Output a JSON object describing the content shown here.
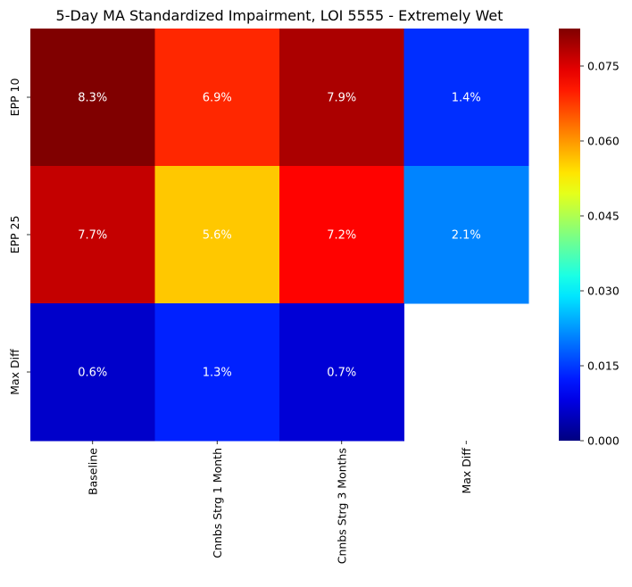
{
  "chart_data": {
    "type": "heatmap",
    "title": "5-Day MA Standardized Impairment, LOI 5555 - Extremely Wet",
    "xlabel": "",
    "ylabel": "",
    "x_categories": [
      "Baseline",
      "Cnnbs Strg 1 Month",
      "Cnnbs Strg 3 Months",
      "Max Diff"
    ],
    "y_categories": [
      "EPP 10",
      "EPP 25",
      "Max Diff"
    ],
    "values": [
      [
        0.083,
        0.069,
        0.079,
        0.014
      ],
      [
        0.077,
        0.056,
        0.072,
        0.021
      ],
      [
        0.006,
        0.013,
        0.007,
        null
      ]
    ],
    "annotations": [
      [
        "8.3%",
        "6.9%",
        "7.9%",
        "1.4%"
      ],
      [
        "7.7%",
        "5.6%",
        "7.2%",
        "2.1%"
      ],
      [
        "0.6%",
        "1.3%",
        "0.7%",
        ""
      ]
    ],
    "colormap": "jet",
    "vmin": 0.0,
    "vmax": 0.0825,
    "colorbar_ticks": [
      "0.000",
      "0.015",
      "0.030",
      "0.045",
      "0.060",
      "0.075"
    ],
    "colorbar_tick_values": [
      0.0,
      0.015,
      0.03,
      0.045,
      0.06,
      0.075
    ]
  }
}
